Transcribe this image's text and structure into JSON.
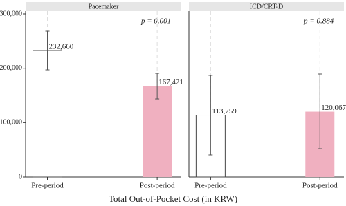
{
  "xlabel": "Total Out-of-Pocket Cost (in KRW)",
  "chart_data": [
    {
      "type": "bar",
      "title": "Pacemaker",
      "annotation": "p = 0.001",
      "categories": [
        "Pre-period",
        "Post-period"
      ],
      "values": [
        232660,
        167421
      ],
      "value_labels": [
        "232,660",
        "167,421"
      ],
      "ci_lower": [
        197000,
        143600
      ],
      "ci_upper": [
        268200,
        190700
      ],
      "colors": [
        "#ffffff",
        "#f0b0c0"
      ],
      "ylim": [
        0,
        300000
      ],
      "yticks": [
        0,
        {
          "value": 100000,
          "label": "100,000"
        },
        {
          "value": 200000,
          "label": "200,000"
        },
        {
          "value": 300000,
          "label": "300,000"
        }
      ]
    },
    {
      "type": "bar",
      "title": "ICD/CRT-D",
      "annotation": "p = 0.884",
      "categories": [
        "Pre-period",
        "Post-period"
      ],
      "values": [
        113759,
        120067
      ],
      "value_labels": [
        "113,759",
        "120,067"
      ],
      "ci_lower": [
        40700,
        52100
      ],
      "ci_upper": [
        186900,
        189400
      ],
      "colors": [
        "#ffffff",
        "#f0b0c0"
      ],
      "ylim": [
        0,
        300000
      ]
    }
  ]
}
